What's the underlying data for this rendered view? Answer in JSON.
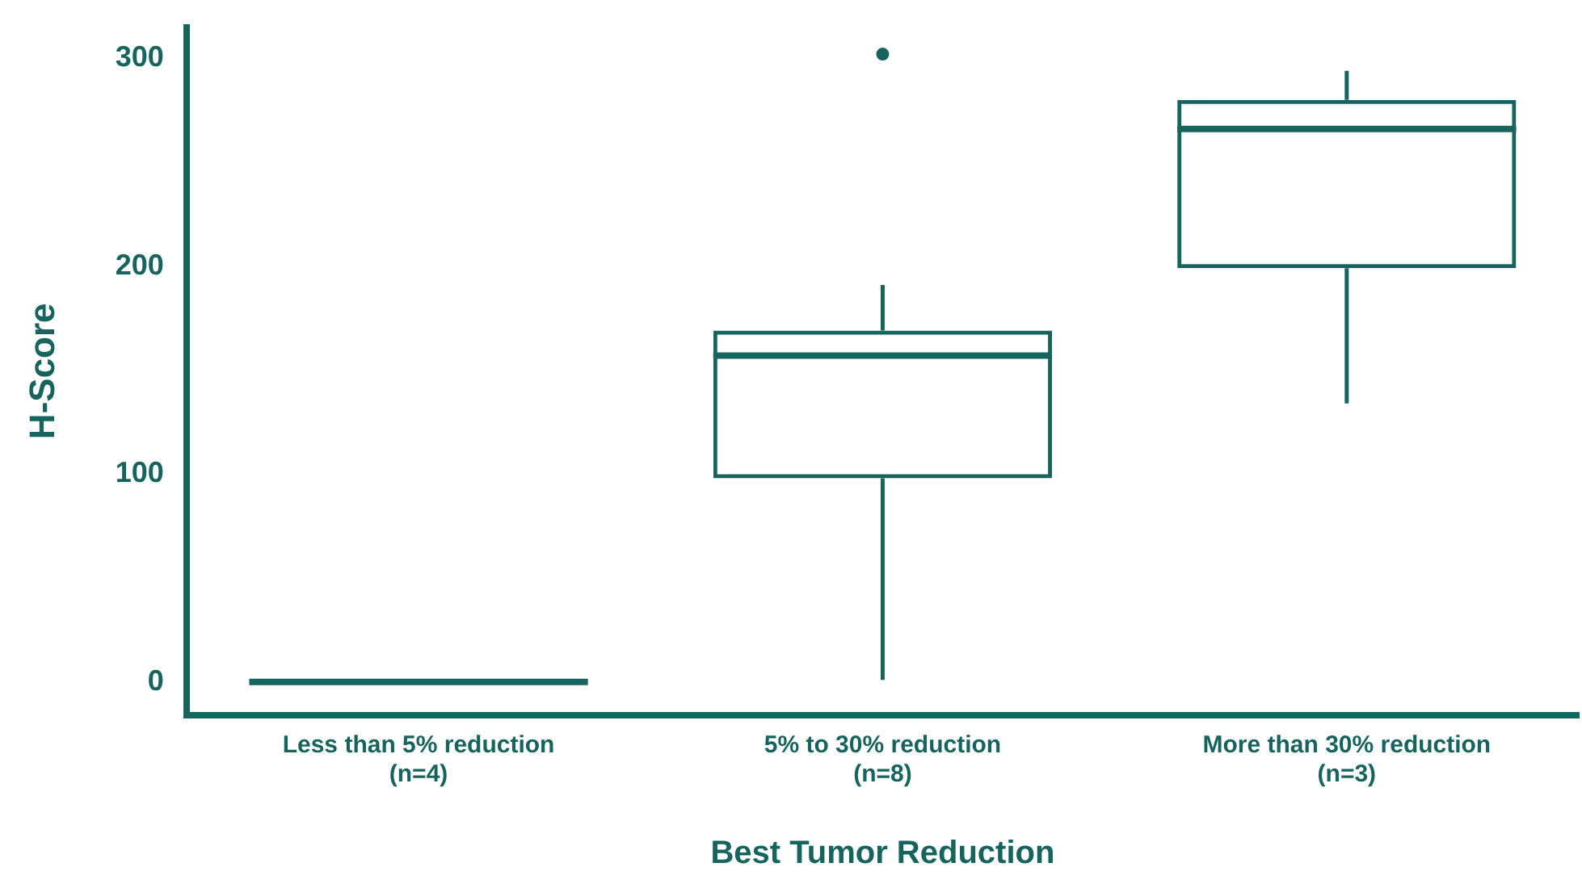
{
  "chart_data": {
    "type": "box",
    "xlabel": "Best Tumor Reduction",
    "ylabel": "H-Score",
    "categories": [
      "Less than 5% reduction\n(n=4)",
      "5% to 30% reduction\n(n=8)",
      "More than 30% reduction\n(n=3)"
    ],
    "boxes": [
      {
        "low": 0,
        "q1": 0,
        "median": 0,
        "q3": 0,
        "high": 0
      },
      {
        "low": 1,
        "q1": 98,
        "median": 157,
        "q3": 169,
        "high": 191,
        "outliers": [
          302
        ]
      },
      {
        "low": 134,
        "q1": 199,
        "median": 266,
        "q3": 280,
        "high": 294
      }
    ],
    "color": "#17645e",
    "ylim": [
      -16,
      315
    ],
    "yticks": [
      0,
      100,
      200,
      300
    ],
    "grid": false,
    "legend": false
  }
}
